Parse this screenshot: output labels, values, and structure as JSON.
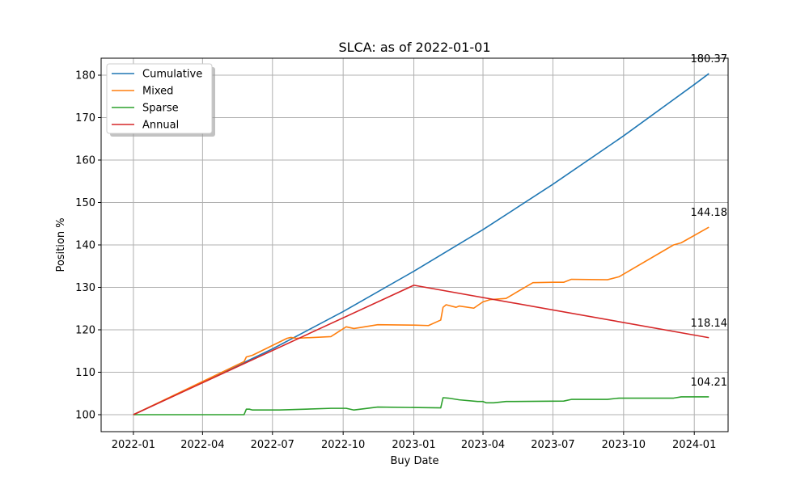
{
  "chart_data": {
    "type": "line",
    "title": "SLCA: as of 2022-01-01",
    "xlabel": "Buy Date",
    "ylabel": "Position %",
    "x_ticks": [
      "2022-01",
      "2022-04",
      "2022-07",
      "2022-10",
      "2023-01",
      "2023-04",
      "2023-07",
      "2023-10",
      "2024-01"
    ],
    "y_ticks": [
      "100",
      "110",
      "120",
      "130",
      "140",
      "150",
      "160",
      "170",
      "180"
    ],
    "xlim": [
      "2021-11-20",
      "2024-02-14"
    ],
    "ylim": [
      96,
      184
    ],
    "grid": true,
    "legend_position": "top-left",
    "series": [
      {
        "name": "Cumulative",
        "color": "#1f77b4",
        "end_label": "180.37",
        "points": [
          [
            "2022-01-01",
            100.0
          ],
          [
            "2022-04-01",
            107.6
          ],
          [
            "2022-07-01",
            115.5
          ],
          [
            "2022-10-01",
            124.3
          ],
          [
            "2023-01-01",
            133.8
          ],
          [
            "2023-04-01",
            143.6
          ],
          [
            "2023-07-01",
            154.3
          ],
          [
            "2023-10-01",
            165.7
          ],
          [
            "2024-01-01",
            177.8
          ],
          [
            "2024-01-20",
            180.37
          ]
        ]
      },
      {
        "name": "Mixed",
        "color": "#ff7f0e",
        "end_label": "144.18",
        "points": [
          [
            "2022-01-01",
            100.0
          ],
          [
            "2022-05-25",
            112.5
          ],
          [
            "2022-05-28",
            113.6
          ],
          [
            "2022-06-05",
            114.0
          ],
          [
            "2022-07-20",
            118.0
          ],
          [
            "2022-07-25",
            118.2
          ],
          [
            "2022-08-01",
            118.0
          ],
          [
            "2022-09-15",
            118.4
          ],
          [
            "2022-10-05",
            120.7
          ],
          [
            "2022-10-15",
            120.3
          ],
          [
            "2022-11-15",
            121.2
          ],
          [
            "2023-01-01",
            121.1
          ],
          [
            "2023-01-20",
            121.0
          ],
          [
            "2023-02-05",
            122.3
          ],
          [
            "2023-02-08",
            125.3
          ],
          [
            "2023-02-12",
            125.9
          ],
          [
            "2023-02-25",
            125.3
          ],
          [
            "2023-03-01",
            125.6
          ],
          [
            "2023-03-20",
            125.1
          ],
          [
            "2023-04-01",
            126.6
          ],
          [
            "2023-04-05",
            126.8
          ],
          [
            "2023-04-10",
            127.1
          ],
          [
            "2023-05-01",
            127.4
          ],
          [
            "2023-06-05",
            131.1
          ],
          [
            "2023-07-01",
            131.2
          ],
          [
            "2023-07-15",
            131.2
          ],
          [
            "2023-07-25",
            131.9
          ],
          [
            "2023-09-10",
            131.8
          ],
          [
            "2023-09-25",
            132.5
          ],
          [
            "2023-12-05",
            140.0
          ],
          [
            "2023-12-15",
            140.5
          ],
          [
            "2024-01-20",
            144.18
          ]
        ]
      },
      {
        "name": "Sparse",
        "color": "#2ca02c",
        "end_label": "104.21",
        "points": [
          [
            "2022-01-01",
            100.0
          ],
          [
            "2022-05-25",
            100.0
          ],
          [
            "2022-05-28",
            101.3
          ],
          [
            "2022-06-01",
            101.3
          ],
          [
            "2022-06-05",
            101.1
          ],
          [
            "2022-07-10",
            101.1
          ],
          [
            "2022-09-15",
            101.5
          ],
          [
            "2022-10-05",
            101.5
          ],
          [
            "2022-10-15",
            101.1
          ],
          [
            "2022-11-15",
            101.8
          ],
          [
            "2023-02-05",
            101.6
          ],
          [
            "2023-02-08",
            104.0
          ],
          [
            "2023-02-15",
            103.9
          ],
          [
            "2023-03-01",
            103.5
          ],
          [
            "2023-03-25",
            103.1
          ],
          [
            "2023-04-01",
            103.1
          ],
          [
            "2023-04-05",
            102.8
          ],
          [
            "2023-04-15",
            102.8
          ],
          [
            "2023-05-01",
            103.1
          ],
          [
            "2023-07-15",
            103.2
          ],
          [
            "2023-07-25",
            103.6
          ],
          [
            "2023-09-10",
            103.6
          ],
          [
            "2023-09-25",
            103.9
          ],
          [
            "2023-12-05",
            103.9
          ],
          [
            "2023-12-15",
            104.2
          ],
          [
            "2024-01-20",
            104.21
          ]
        ]
      },
      {
        "name": "Annual",
        "color": "#d62728",
        "end_label": "118.14",
        "points": [
          [
            "2022-01-01",
            100.0
          ],
          [
            "2023-01-01",
            130.5
          ],
          [
            "2024-01-20",
            118.14
          ]
        ]
      }
    ]
  }
}
